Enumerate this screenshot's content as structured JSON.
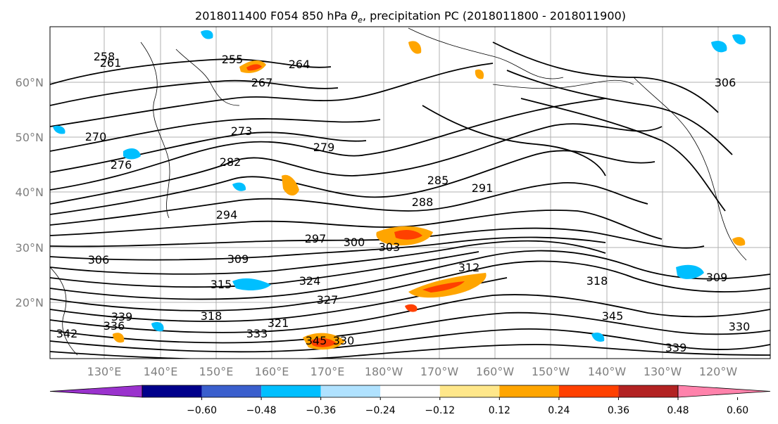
{
  "title": {
    "run": "2018011400",
    "forecast": "F054",
    "level": "850 hPa",
    "variable_symbol": "θ",
    "variable_subscript": "e",
    "rest": ", precipitation PC (2018011800 - 2018011900)"
  },
  "map": {
    "lat_labels": [
      "60°N",
      "50°N",
      "40°N",
      "30°N",
      "20°N"
    ],
    "lon_labels": [
      "130°E",
      "140°E",
      "150°E",
      "160°E",
      "170°E",
      "180°W",
      "170°W",
      "160°W",
      "150°W",
      "140°W",
      "130°W",
      "120°W"
    ],
    "gridlines": true,
    "contour_labels": [
      "258",
      "261",
      "255",
      "264",
      "267",
      "270",
      "273",
      "276",
      "279",
      "282",
      "285",
      "288",
      "291",
      "294",
      "297",
      "300",
      "303",
      "306",
      "309",
      "312",
      "315",
      "318",
      "321",
      "324",
      "327",
      "330",
      "333",
      "336",
      "339",
      "342",
      "345",
      "306",
      "309",
      "318",
      "330",
      "339",
      "345"
    ]
  },
  "colorbar": {
    "colors": [
      "#9a32cd",
      "#00008b",
      "#3a5fcd",
      "#00bfff",
      "#b0e2ff",
      "#ffffff",
      "#ffe78a",
      "#ffa500",
      "#ff4000",
      "#b22222",
      "#ff82ab"
    ],
    "tick_labels": [
      "−0.60",
      "−0.48",
      "−0.36",
      "−0.24",
      "−0.12",
      "0.12",
      "0.24",
      "0.36",
      "0.48",
      "0.60"
    ]
  }
}
